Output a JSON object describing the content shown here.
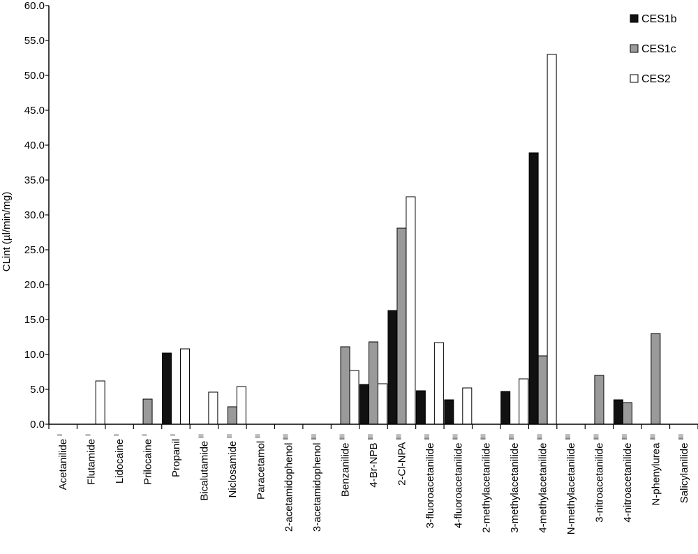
{
  "chart_data": {
    "type": "bar",
    "title": "",
    "xlabel": "",
    "ylabel": "CLint (µl/min/mg)",
    "ylim": [
      0,
      60
    ],
    "ytick_step": 5,
    "ytick_labels": [
      "0.0",
      "5.0",
      "10.0",
      "15.0",
      "20.0",
      "25.0",
      "30.0",
      "35.0",
      "40.0",
      "45.0",
      "50.0",
      "55.0",
      "60.0"
    ],
    "grid": false,
    "legend_position": "top-right",
    "categories": [
      {
        "name": "Acetanilide",
        "group": "I"
      },
      {
        "name": "Flutamide",
        "group": "I"
      },
      {
        "name": "Lidocaine",
        "group": "I"
      },
      {
        "name": "Prilocaine",
        "group": "I"
      },
      {
        "name": "Propanil",
        "group": "I"
      },
      {
        "name": "Bicalutamide",
        "group": "II"
      },
      {
        "name": "Niclosamide",
        "group": "II"
      },
      {
        "name": "Paracetamol",
        "group": "II"
      },
      {
        "name": "2-acetamidophenol",
        "group": "III"
      },
      {
        "name": "3-acetamidophenol",
        "group": "III"
      },
      {
        "name": "Benzanilide",
        "group": "III"
      },
      {
        "name": "4-Br-NPB",
        "group": "III"
      },
      {
        "name": "2-Cl-NPA",
        "group": "III"
      },
      {
        "name": "3-fluoroacetanilide",
        "group": "III"
      },
      {
        "name": "4-fluoroacetanilide",
        "group": "III"
      },
      {
        "name": "2-methylacetanilide",
        "group": "III"
      },
      {
        "name": "3-methylacetanilide",
        "group": "III"
      },
      {
        "name": "4-methylacetanilide",
        "group": "III"
      },
      {
        "name": "N-methylacetanilide",
        "group": "III"
      },
      {
        "name": "3-nitroacetanilide",
        "group": "III"
      },
      {
        "name": "4-nitroacetanilide",
        "group": "III"
      },
      {
        "name": "N-phenylurea",
        "group": "III"
      },
      {
        "name": "Salicylanilide",
        "group": "III"
      }
    ],
    "series": [
      {
        "name": "CES1b",
        "color": "#111111",
        "values": [
          0,
          0,
          0,
          0,
          10.2,
          0,
          0,
          0,
          0,
          0,
          0,
          5.7,
          16.3,
          4.8,
          3.5,
          0,
          4.7,
          38.9,
          0,
          0,
          3.5,
          0,
          0
        ]
      },
      {
        "name": "CES1c",
        "color": "#9a9a9a",
        "values": [
          0,
          0,
          0,
          3.6,
          0,
          0,
          2.5,
          0,
          0,
          0,
          11.1,
          11.8,
          28.1,
          0,
          0,
          0,
          0,
          9.8,
          0,
          7.0,
          3.1,
          13.0,
          0
        ]
      },
      {
        "name": "CES2",
        "color": "#ffffff",
        "values": [
          0,
          6.2,
          0,
          0,
          10.8,
          4.6,
          5.4,
          0,
          0,
          0,
          7.7,
          5.8,
          32.6,
          11.7,
          5.2,
          0,
          6.5,
          53.0,
          0,
          0,
          0,
          0,
          0
        ]
      }
    ]
  }
}
